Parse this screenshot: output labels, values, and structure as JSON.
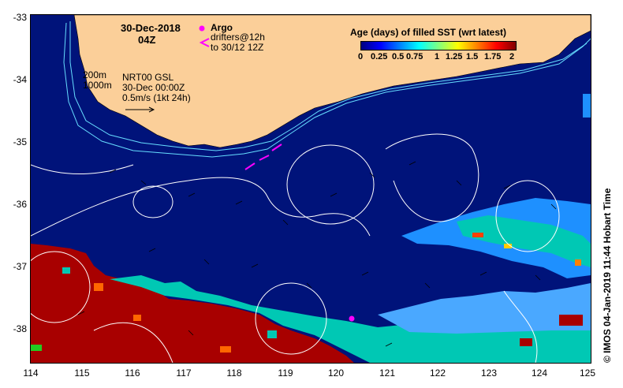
{
  "map": {
    "date": "30-Dec-2018",
    "time": "04Z",
    "legend_argo": "Argo",
    "legend_drifters_line1": "drifters@12h",
    "legend_drifters_line2": "to 30/12 12Z",
    "contour_200": "200m",
    "contour_1000": "1000m",
    "product_line1": "NRT00 GSL",
    "product_line2": "30-Dec 00:00Z",
    "product_line3": "0.5m/s (1kt 24h)",
    "colorbar_title": "Age (days) of filled SST (wrt latest)",
    "colorbar_ticks": [
      "0",
      "0.25",
      "0.5",
      "0.75",
      "1",
      "1.25",
      "1.5",
      "1.75",
      "2"
    ],
    "credit": "© IMOS 04-Jan-2019 11:44 Hobart Time",
    "y_ticks": [
      "-33",
      "-34",
      "-35",
      "-36",
      "-37",
      "-38"
    ],
    "x_ticks": [
      "114",
      "115",
      "116",
      "117",
      "118",
      "119",
      "120",
      "121",
      "122",
      "123",
      "124",
      "125"
    ],
    "colors": {
      "land": "#fbcf99",
      "ocean": "#00137a",
      "fill_red": "#a80000",
      "fill_cyan": "#00c8b4",
      "argo": "#ff00ff",
      "contour": "#66ddff"
    }
  }
}
